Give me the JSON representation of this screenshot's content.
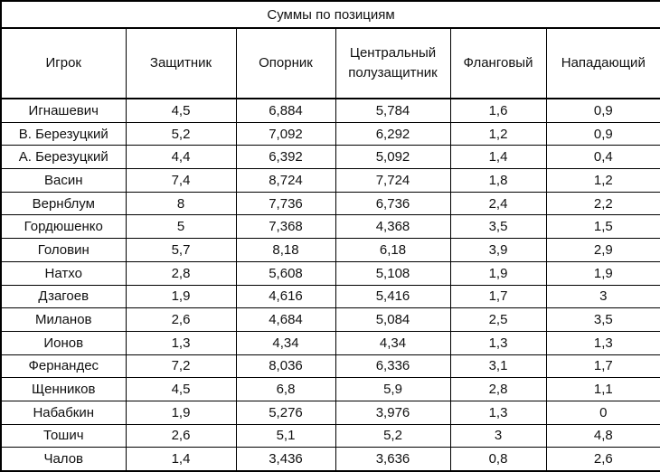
{
  "title": "Суммы по позициям",
  "columns": [
    "Игрок",
    "Защитник",
    "Опорник",
    "Центральный полузащитник",
    "Фланговый",
    "Нападающий"
  ],
  "rows": [
    [
      "Игнашевич",
      "4,5",
      "6,884",
      "5,784",
      "1,6",
      "0,9"
    ],
    [
      "В. Березуцкий",
      "5,2",
      "7,092",
      "6,292",
      "1,2",
      "0,9"
    ],
    [
      "А. Березуцкий",
      "4,4",
      "6,392",
      "5,092",
      "1,4",
      "0,4"
    ],
    [
      "Васин",
      "7,4",
      "8,724",
      "7,724",
      "1,8",
      "1,2"
    ],
    [
      "Вернблум",
      "8",
      "7,736",
      "6,736",
      "2,4",
      "2,2"
    ],
    [
      "Гордюшенко",
      "5",
      "7,368",
      "4,368",
      "3,5",
      "1,5"
    ],
    [
      "Головин",
      "5,7",
      "8,18",
      "6,18",
      "3,9",
      "2,9"
    ],
    [
      "Натхо",
      "2,8",
      "5,608",
      "5,108",
      "1,9",
      "1,9"
    ],
    [
      "Дзагоев",
      "1,9",
      "4,616",
      "5,416",
      "1,7",
      "3"
    ],
    [
      "Миланов",
      "2,6",
      "4,684",
      "5,084",
      "2,5",
      "3,5"
    ],
    [
      "Ионов",
      "1,3",
      "4,34",
      "4,34",
      "1,3",
      "1,3"
    ],
    [
      "Фернандес",
      "7,2",
      "8,036",
      "6,336",
      "3,1",
      "1,7"
    ],
    [
      "Щенников",
      "4,5",
      "6,8",
      "5,9",
      "2,8",
      "1,1"
    ],
    [
      "Набабкин",
      "1,9",
      "5,276",
      "3,976",
      "1,3",
      "0"
    ],
    [
      "Тошич",
      "2,6",
      "5,1",
      "5,2",
      "3",
      "4,8"
    ],
    [
      "Чалов",
      "1,4",
      "3,436",
      "3,636",
      "0,8",
      "2,6"
    ]
  ]
}
